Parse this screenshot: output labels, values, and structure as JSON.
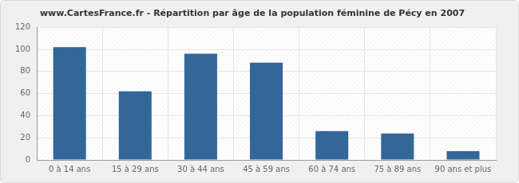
{
  "chart_data": {
    "type": "bar",
    "title": "www.CartesFrance.fr - Répartition par âge de la population féminine de Pécy en 2007",
    "categories": [
      "0 à 14 ans",
      "15 à 29 ans",
      "30 à 44 ans",
      "45 à 59 ans",
      "60 à 74 ans",
      "75 à 89 ans",
      "90 ans et plus"
    ],
    "values": [
      102,
      62,
      96,
      88,
      26,
      24,
      8
    ],
    "color": "#336699",
    "ylim": [
      0,
      120
    ],
    "yticks": [
      0,
      20,
      40,
      60,
      80,
      100,
      120
    ],
    "grid": true
  }
}
